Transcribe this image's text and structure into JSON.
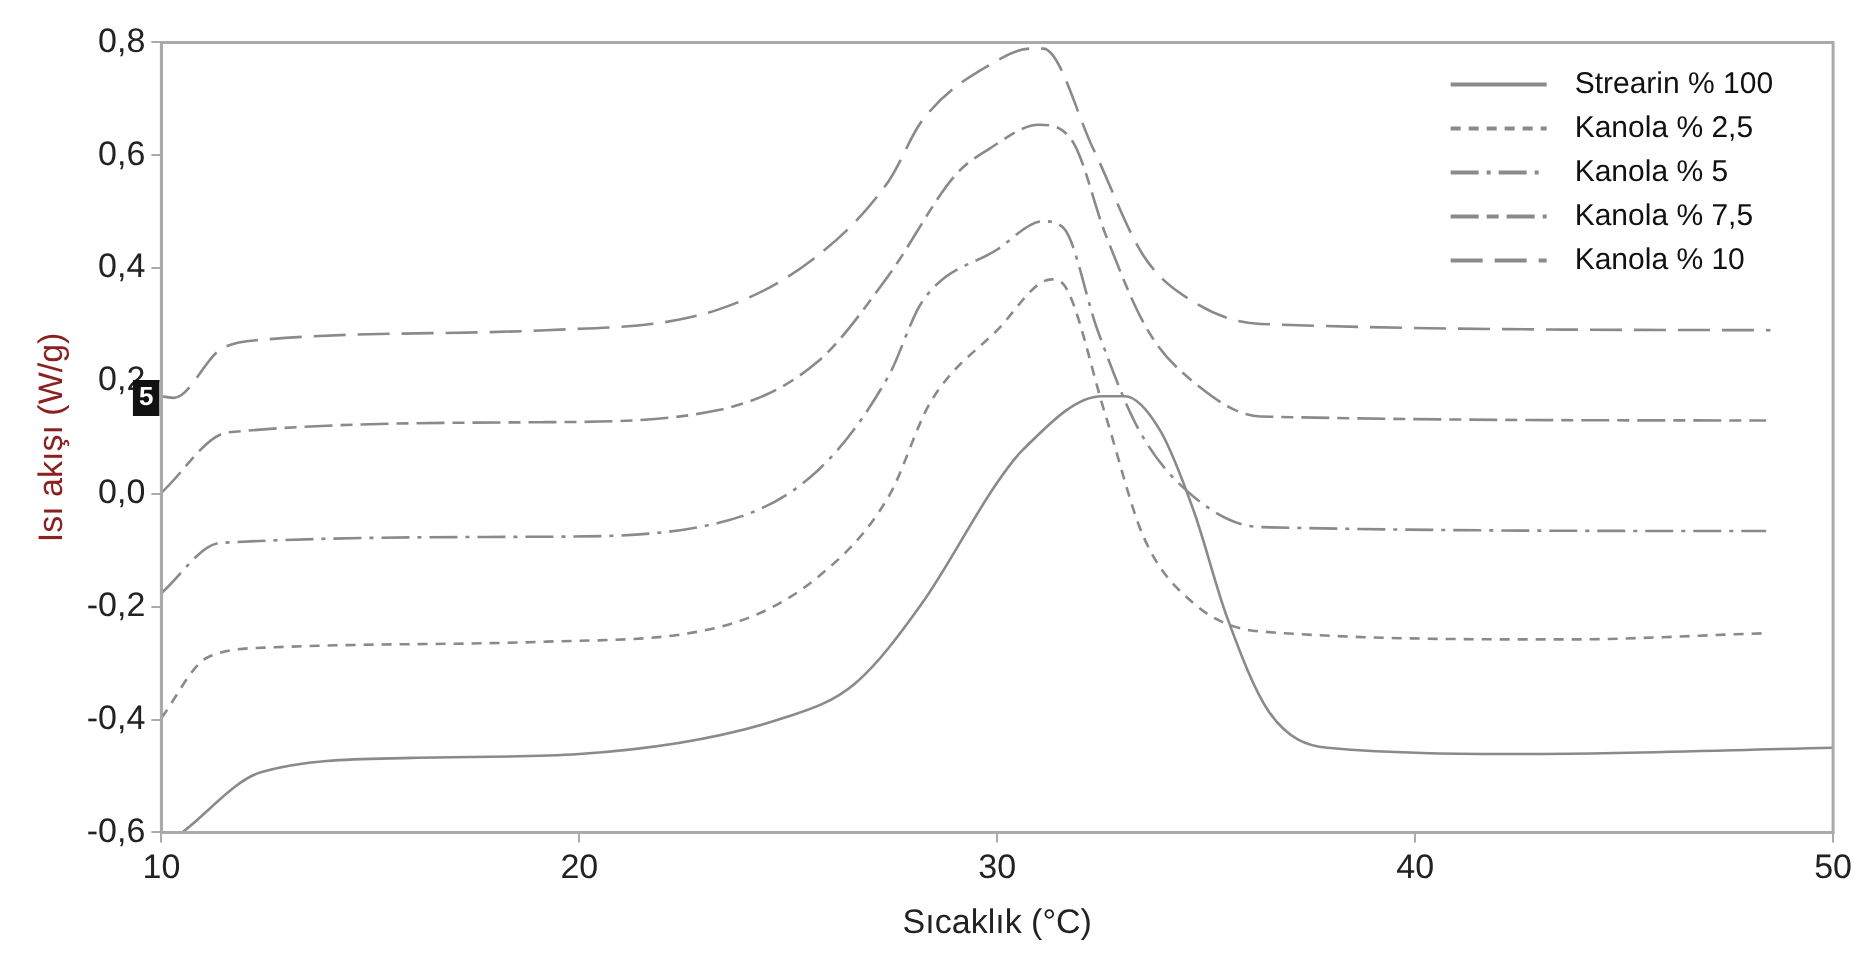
{
  "chart_data": {
    "type": "line",
    "xlabel": "Sıcaklık (°C)",
    "ylabel": "Isı akışı (W/g)",
    "xlim": [
      10,
      50
    ],
    "xticks": [
      10,
      20,
      30,
      40,
      50
    ],
    "ylim": [
      -0.6,
      0.8
    ],
    "yticks": [
      {
        "value": -0.6,
        "label": "-0,6"
      },
      {
        "value": -0.4,
        "label": "-0,4"
      },
      {
        "value": -0.2,
        "label": "-0,2"
      },
      {
        "value": 0,
        "label": "0,0"
      },
      {
        "value": 0.2,
        "label": "0,2"
      },
      {
        "value": 0.4,
        "label": "0,4"
      },
      {
        "value": 0.6,
        "label": "0,6"
      },
      {
        "value": 0.8,
        "label": "0,8"
      }
    ],
    "grid": false,
    "legend": "top right",
    "marker": "none",
    "annotations": [
      {
        "text": "5",
        "x": 10,
        "y": 0.17
      }
    ],
    "series": [
      {
        "name": "Strearin % 100",
        "color": "#8a8a8a",
        "line_style": "solid",
        "x": [
          10.5,
          12.4,
          16,
          20,
          24.9,
          26.6,
          28.2,
          30,
          30.6,
          32.5,
          33.05,
          33.9,
          34.7,
          35.5,
          36.5,
          37.9,
          42.8,
          50
        ],
        "values": [
          -0.6,
          -0.493,
          -0.468,
          -0.461,
          -0.397,
          -0.336,
          -0.194,
          0.02,
          0.077,
          0.173,
          0.173,
          0.112,
          -0.03,
          -0.219,
          -0.386,
          -0.45,
          -0.461,
          -0.45
        ]
      },
      {
        "name": "Kanola % 2,5",
        "color": "#8a8a8a",
        "line_style": "dashed",
        "x": [
          10,
          11.1,
          12.7,
          19.2,
          23.3,
          25.7,
          27.4,
          28.4,
          30,
          31.3,
          31.6,
          32.6,
          33.5,
          34.7,
          36.3,
          43.6,
          48.4
        ],
        "values": [
          -0.397,
          -0.29,
          -0.272,
          -0.262,
          -0.237,
          -0.148,
          -0.005,
          0.162,
          0.29,
          0.38,
          0.37,
          0.137,
          -0.076,
          -0.194,
          -0.244,
          -0.258,
          -0.247
        ]
      },
      {
        "name": "Kanola % 5",
        "color": "#8a8a8a",
        "line_style": "dashed",
        "x": [
          10,
          11.4,
          19.2,
          23.3,
          25.7,
          27.4,
          28.2,
          30,
          31.1,
          31.6,
          32.4,
          33.4,
          34.7,
          36.3,
          48.4
        ],
        "values": [
          -0.176,
          -0.087,
          -0.076,
          -0.052,
          0.041,
          0.209,
          0.34,
          0.433,
          0.483,
          0.47,
          0.29,
          0.112,
          -0.005,
          -0.059,
          -0.066
        ]
      },
      {
        "name": "Kanola % 7,5",
        "color": "#8a8a8a",
        "line_style": "dashed",
        "x": [
          10,
          11.6,
          19.2,
          23.3,
          25.7,
          27.4,
          29,
          29.8,
          31,
          31.8,
          32.6,
          33.6,
          34.7,
          36.3,
          48.4
        ],
        "values": [
          0.002,
          0.109,
          0.127,
          0.148,
          0.234,
          0.387,
          0.565,
          0.611,
          0.654,
          0.625,
          0.458,
          0.29,
          0.198,
          0.137,
          0.13
        ]
      },
      {
        "name": "Kanola % 10",
        "color": "#8a8a8a",
        "line_style": "dashed",
        "x": [
          10,
          10.3,
          11.4,
          12.4,
          19.2,
          23.3,
          25.7,
          27.4,
          28.2,
          30,
          30.8,
          31.1,
          32.3,
          33.5,
          34.7,
          36.3,
          48.5
        ],
        "values": [
          0.173,
          0.17,
          0.255,
          0.273,
          0.29,
          0.326,
          0.422,
          0.554,
          0.661,
          0.768,
          0.789,
          0.789,
          0.611,
          0.422,
          0.34,
          0.301,
          0.29
        ]
      }
    ]
  }
}
